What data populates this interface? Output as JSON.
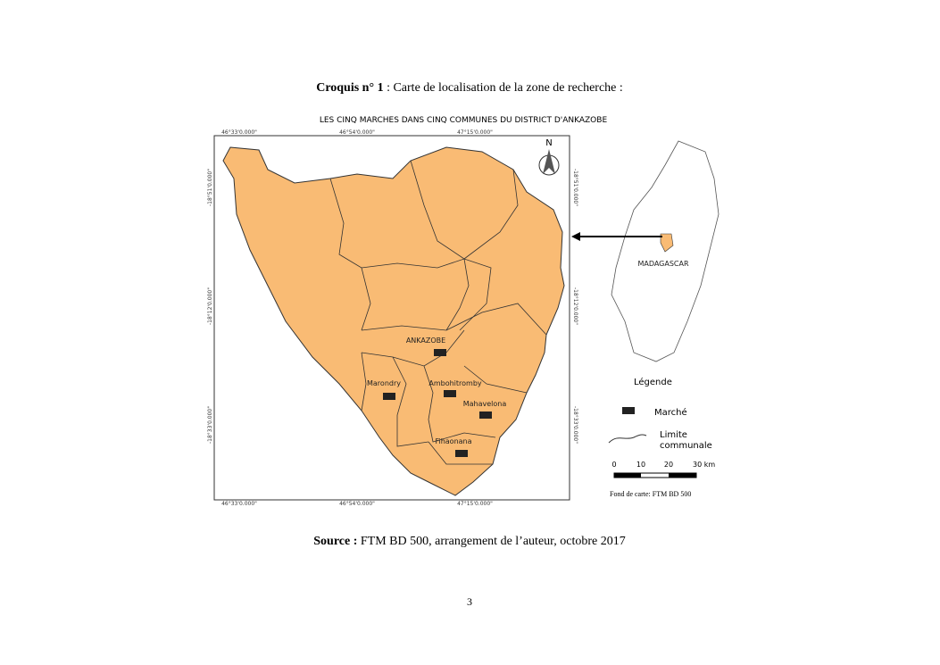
{
  "caption": {
    "label": "Croquis n° 1",
    "text": " : Carte de localisation de la zone de recherche :"
  },
  "map": {
    "title": "LES CINQ MARCHES DANS CINQ COMMUNES DU DISTRICT D'ANKAZOBE",
    "lon_labels": [
      "46°33'0.000\"",
      "46°54'0.000\"",
      "47°15'0.000\""
    ],
    "lat_labels": [
      "-18°51'0.000\"",
      "-18°12'0.000\"",
      "-18°33'0.000\""
    ],
    "north": "N",
    "places": [
      "ANKAZOBE",
      "Marondry",
      "Ambohitromby",
      "Mahavelona",
      "Fihaonana"
    ],
    "inset_label": "MADAGASCAR",
    "legend": {
      "title": "Légende",
      "market": "Marché",
      "boundary": "Limite communale",
      "scale": [
        "0",
        "10",
        "20",
        "30 km"
      ]
    },
    "map_base": "Fond de carte: FTM BD 500"
  },
  "source": {
    "label": "Source :",
    "text": " FTM BD 500, arrangement de l’auteur, octobre 2017"
  },
  "page_number": "3"
}
